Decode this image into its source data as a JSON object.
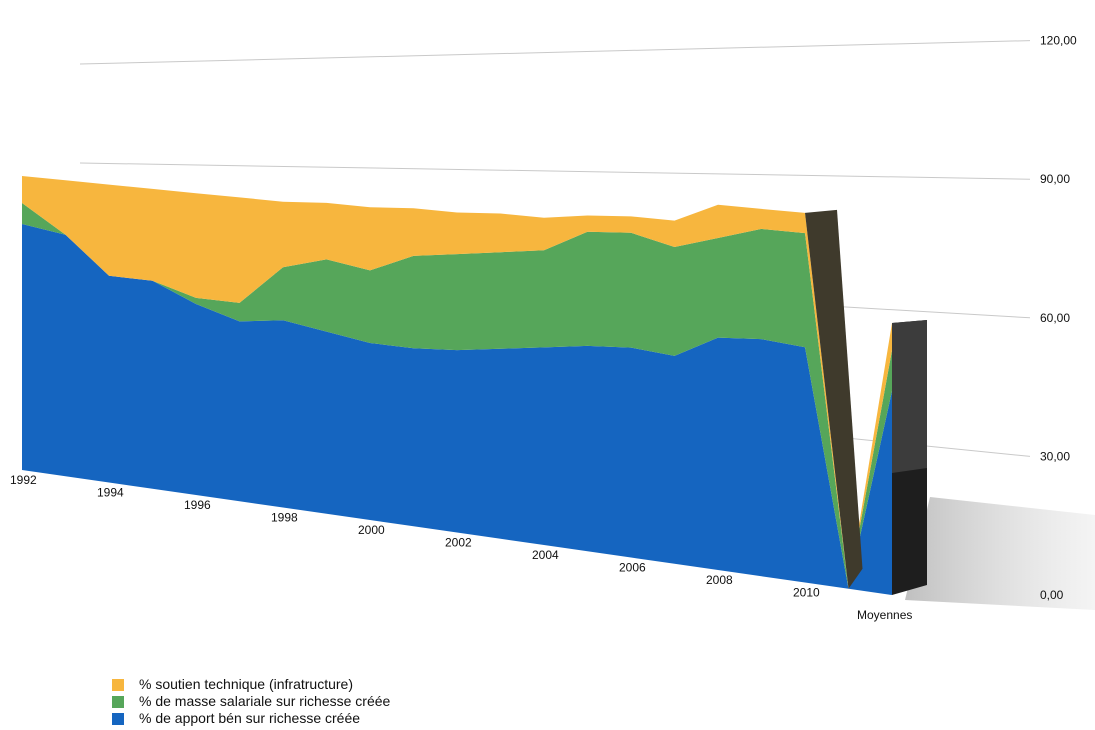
{
  "chart_data": {
    "type": "area",
    "stacked": true,
    "three_d": true,
    "x": [
      "1992",
      "1993",
      "1994",
      "1995",
      "1996",
      "1997",
      "1998",
      "1999",
      "2000",
      "2001",
      "2002",
      "2003",
      "2004",
      "2005",
      "2006",
      "2007",
      "2008",
      "2009",
      "2010",
      "2011",
      "2012"
    ],
    "x_tick_labels": [
      "1992",
      "1994",
      "1996",
      "1998",
      "2000",
      "2002",
      "2004",
      "2006",
      "2008",
      "2010"
    ],
    "ylim": [
      0,
      120
    ],
    "y_ticks": [
      "0,00",
      "30,00",
      "60,00",
      "90,00",
      "120,00"
    ],
    "legend_position": "bottom-left",
    "grid": true,
    "series": [
      {
        "name": "% de apport bén sur richesse créée",
        "color": "#1565c0",
        "values": [
          82,
          80,
          68,
          68,
          62,
          58,
          60,
          58,
          56,
          56,
          57,
          59,
          61,
          63,
          64,
          63,
          70,
          71,
          70,
          0,
          60
        ]
      },
      {
        "name": "% de masse salariale sur richesse créée",
        "color": "#56a65a",
        "values": [
          7,
          0,
          0,
          0,
          2,
          6,
          17,
          23,
          23,
          29,
          30,
          30,
          30,
          35,
          35,
          33,
          30,
          33,
          34,
          0,
          12
        ]
      },
      {
        "name": "% soutien technique (infratructure)",
        "color": "#f7b63e",
        "values": [
          9,
          18,
          30,
          30,
          34,
          34,
          21,
          18,
          20,
          15,
          13,
          12,
          10,
          5,
          5,
          8,
          10,
          6,
          6,
          0,
          8
        ]
      }
    ],
    "category_labels": {
      "moyennes": "Moyennes"
    },
    "legend_order": [
      "% soutien technique (infratructure)",
      "% de masse salariale sur richesse créée",
      "% de apport bén sur richesse créée"
    ]
  }
}
